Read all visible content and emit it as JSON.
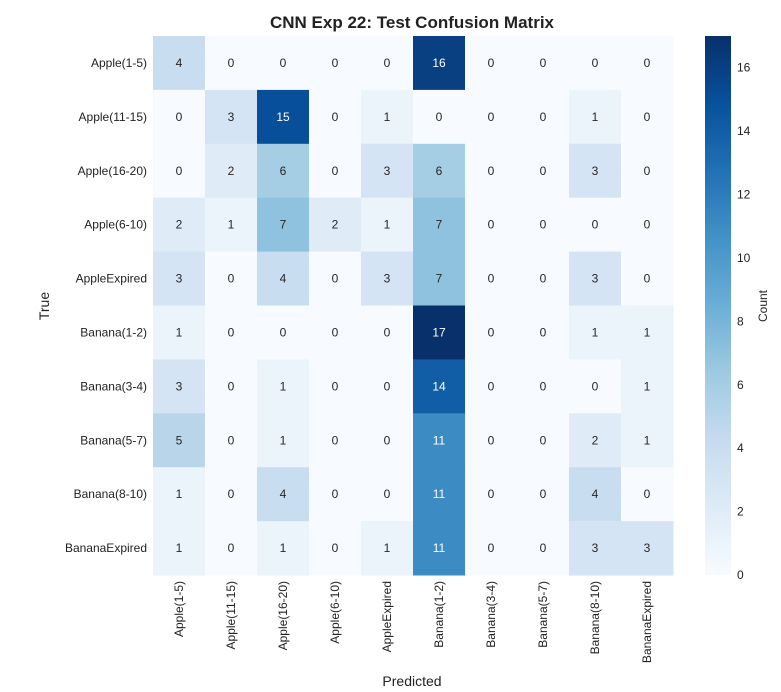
{
  "chart_data": {
    "type": "heatmap",
    "title": "CNN Exp 22: Test Confusion Matrix",
    "xlabel": "Predicted",
    "ylabel": "True",
    "x_categories": [
      "Apple(1-5)",
      "Apple(11-15)",
      "Apple(16-20)",
      "Apple(6-10)",
      "AppleExpired",
      "Banana(1-2)",
      "Banana(3-4)",
      "Banana(5-7)",
      "Banana(8-10)",
      "BananaExpired"
    ],
    "y_categories": [
      "Apple(1-5)",
      "Apple(11-15)",
      "Apple(16-20)",
      "Apple(6-10)",
      "AppleExpired",
      "Banana(1-2)",
      "Banana(3-4)",
      "Banana(5-7)",
      "Banana(8-10)",
      "BananaExpired"
    ],
    "values": [
      [
        4,
        0,
        0,
        0,
        0,
        16,
        0,
        0,
        0,
        0
      ],
      [
        0,
        3,
        15,
        0,
        1,
        0,
        0,
        0,
        1,
        0
      ],
      [
        0,
        2,
        6,
        0,
        3,
        6,
        0,
        0,
        3,
        0
      ],
      [
        2,
        1,
        7,
        2,
        1,
        7,
        0,
        0,
        0,
        0
      ],
      [
        3,
        0,
        4,
        0,
        3,
        7,
        0,
        0,
        3,
        0
      ],
      [
        1,
        0,
        0,
        0,
        0,
        17,
        0,
        0,
        1,
        1
      ],
      [
        3,
        0,
        1,
        0,
        0,
        14,
        0,
        0,
        0,
        1
      ],
      [
        5,
        0,
        1,
        0,
        0,
        11,
        0,
        0,
        2,
        1
      ],
      [
        1,
        0,
        4,
        0,
        0,
        11,
        0,
        0,
        4,
        0
      ],
      [
        1,
        0,
        1,
        0,
        1,
        11,
        0,
        0,
        3,
        3
      ]
    ],
    "colorbar": {
      "label": "Count",
      "min": 0,
      "max": 17,
      "ticks": [
        0,
        2,
        4,
        6,
        8,
        10,
        12,
        14,
        16
      ]
    },
    "colormap": "Blues"
  }
}
